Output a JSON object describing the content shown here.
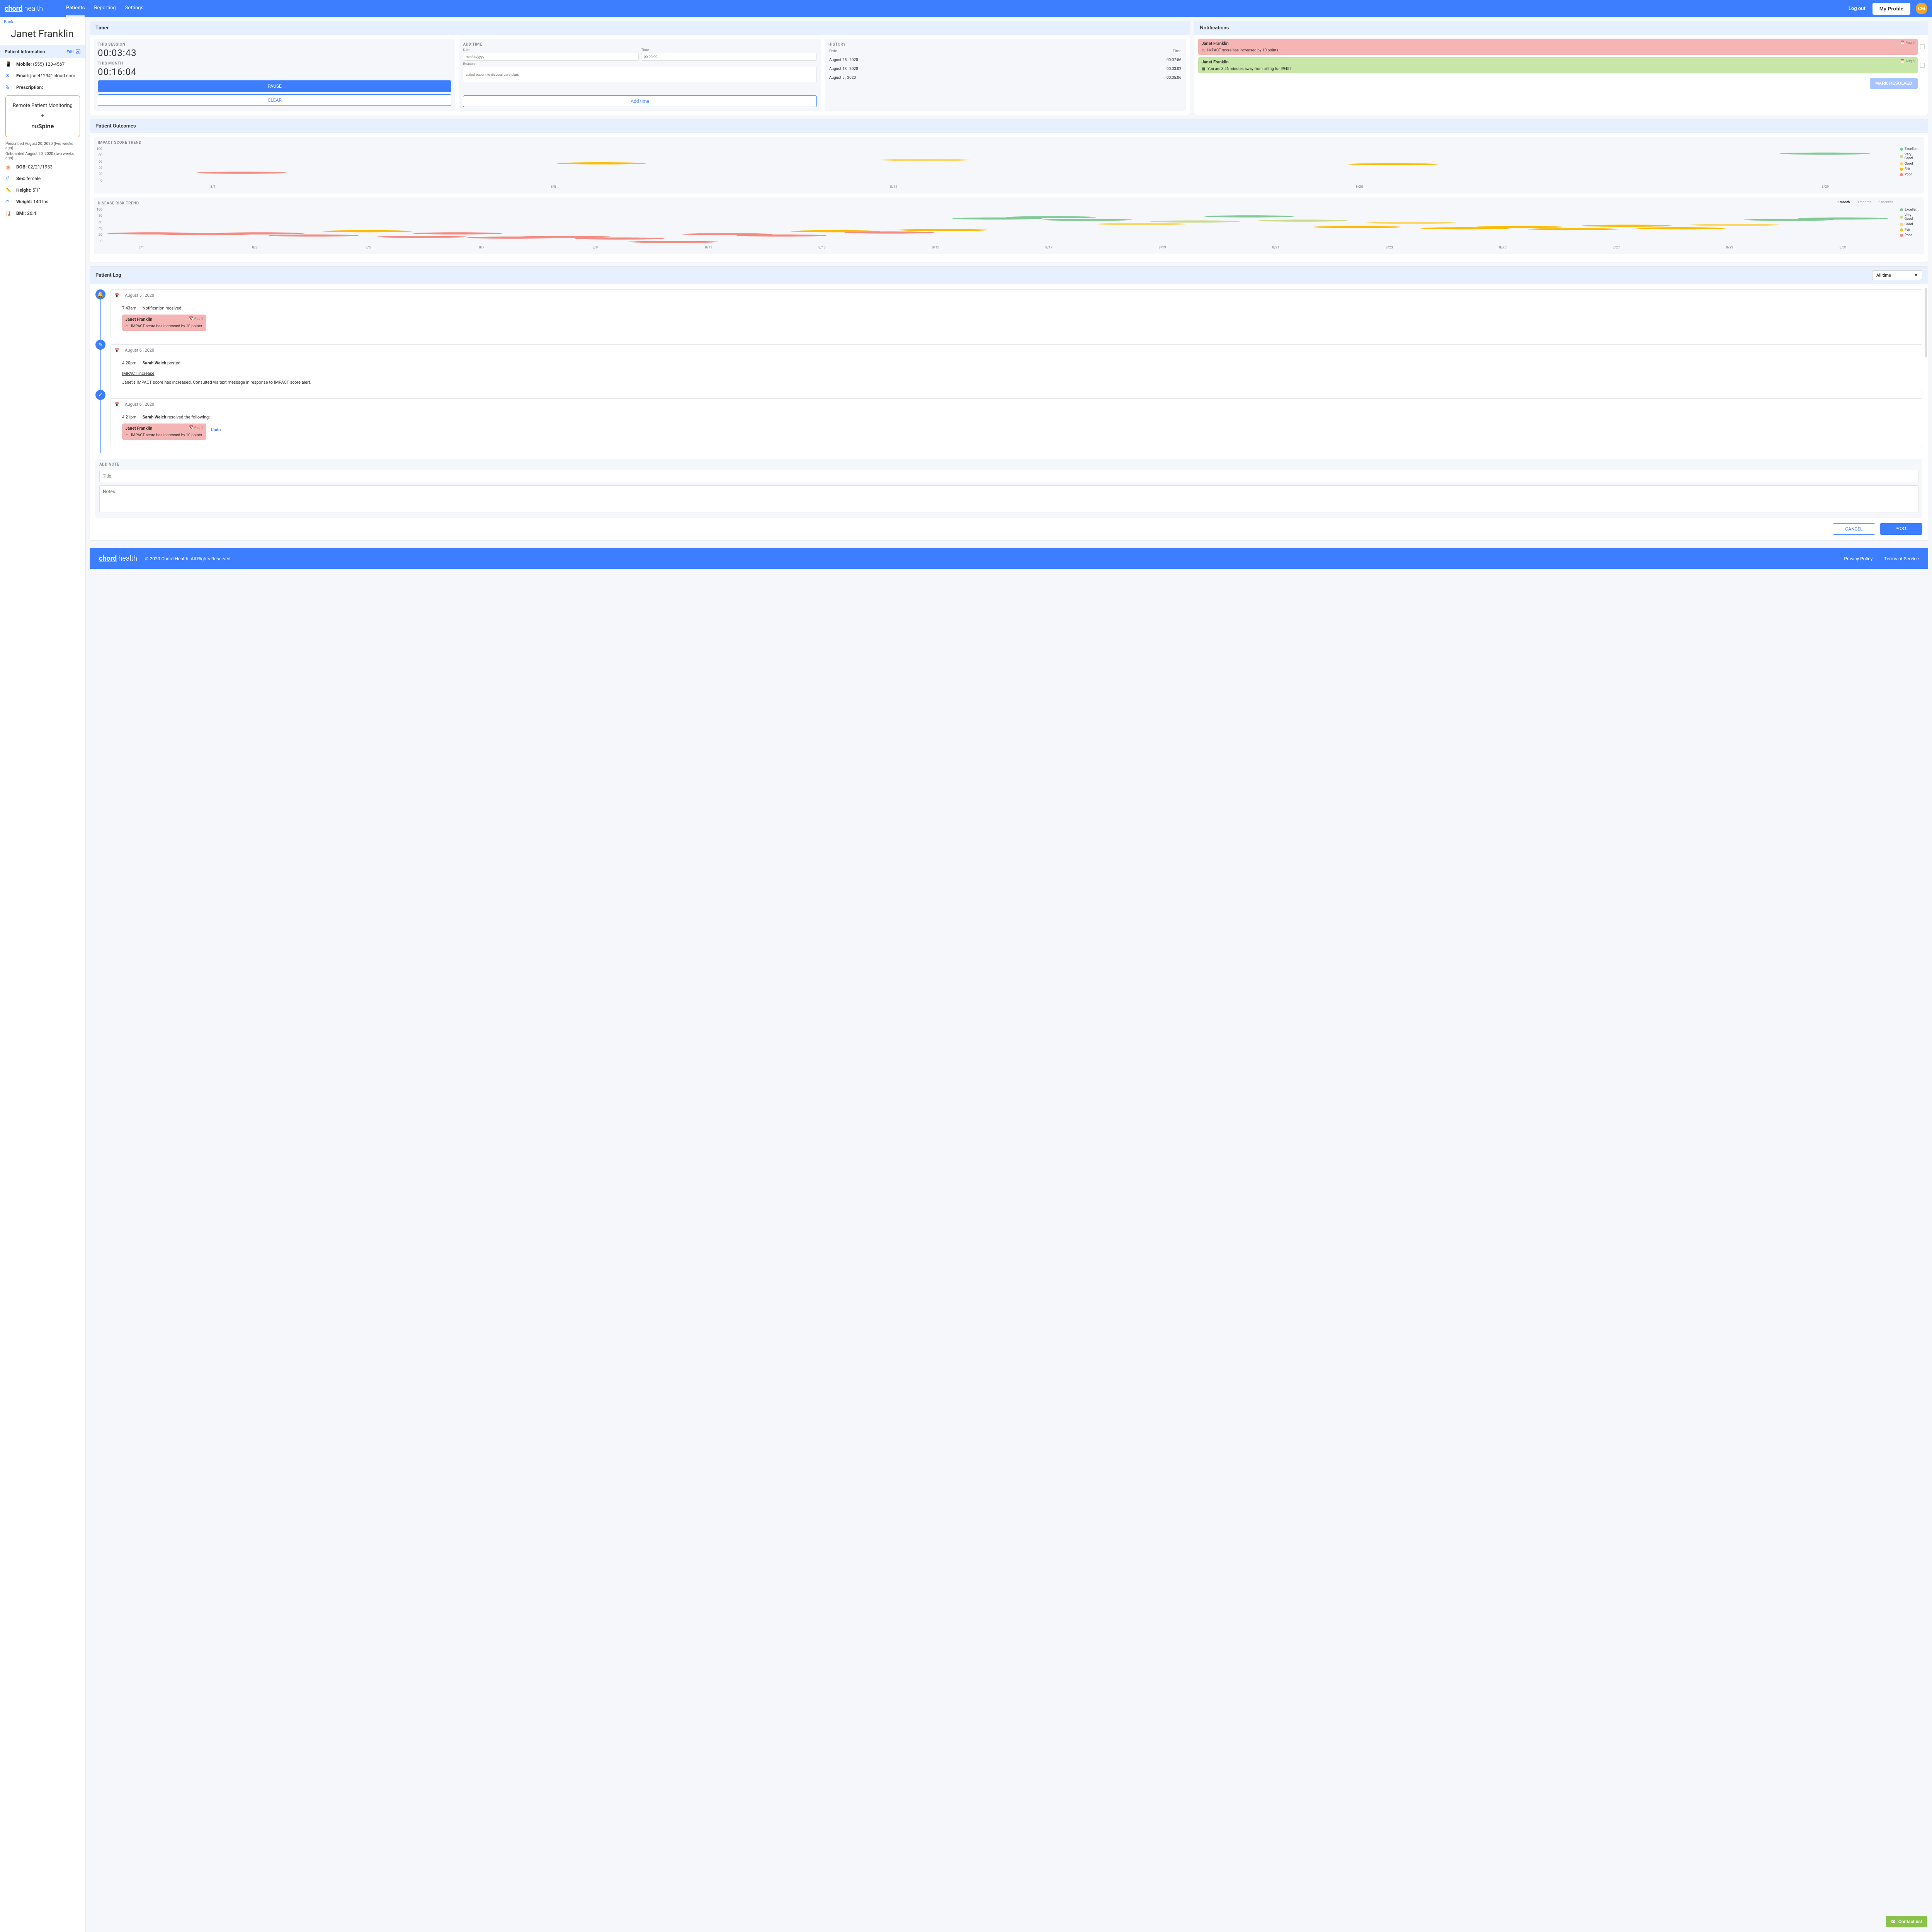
{
  "brand": {
    "part1": "chord",
    "part2": " health"
  },
  "nav": {
    "patients": "Patients",
    "reporting": "Reporting",
    "settings": "Settings"
  },
  "topbar": {
    "logout": "Log out",
    "profile": "My Profile",
    "initials": "CM"
  },
  "sidebar": {
    "back": "Back",
    "patient_name": "Janet Franklin",
    "info_header": "Patient Information",
    "edit": "Edit",
    "mobile_label": "Mobile:",
    "mobile": "(555) 123-4567",
    "email_label": "Email:",
    "email": "janet129@icloud.com",
    "rx_label": "Prescription:",
    "rx_title": "Remote Patient Monitoring",
    "rx_plus": "+",
    "rx_brand_i": "nu",
    "rx_brand_b": "Spine",
    "prescribed": "Prescribed August 20, 2020 (two weeks ago)",
    "onboarded": "Onboarded August 20, 2020 (two weeks ago)",
    "dob_label": "DOB:",
    "dob": "02/21/1953",
    "sex_label": "Sex:",
    "sex": "female",
    "height_label": "Height:",
    "height": "5'1\"",
    "weight_label": "Weight:",
    "weight": "140 lbs",
    "bmi_label": "BMI:",
    "bmi": "26.4"
  },
  "timer": {
    "header": "Timer",
    "session_label": "THIS SESSION",
    "session_value": "00:03:43",
    "month_label": "THIS MONTH",
    "month_value": "00:16:04",
    "pause": "PAUSE",
    "clear": "CLEAR",
    "add_label": "ADD TIME",
    "date_label": "Date",
    "date_ph": "mm/dd/yyyy",
    "time_label": "Time",
    "time_ph": "00:00:00",
    "reason_label": "Reason",
    "reason_ph": "called patient to discuss care plan.",
    "add_btn": "Add time",
    "history_label": "HISTORY",
    "h_date": "Date",
    "h_time": "Time",
    "history": [
      {
        "date": "August 25 , 2020",
        "time": "00:07:56"
      },
      {
        "date": "August 18 , 2020",
        "time": "00:03:02"
      },
      {
        "date": "August 5 , 2020",
        "time": "00:05:06"
      }
    ]
  },
  "notifications": {
    "header": "Notifications",
    "mark_resolved": "MARK RESOLVED",
    "items": [
      {
        "name": "Janet Franklin",
        "date": "Aug 5",
        "msg": "IMPACT score has increased by 10 points.",
        "type": "red",
        "icon": "⚠"
      },
      {
        "name": "Janet Franklin",
        "date": "Aug 5",
        "msg": "You are 3:56 minutes away from billing for 99457.",
        "type": "green",
        "icon": "▦"
      }
    ]
  },
  "outcomes": {
    "header": "Patient Outcomes",
    "impact": {
      "title": "IMPACT SCORE TREND",
      "y_ticks": [
        100,
        80,
        60,
        40,
        20,
        0
      ],
      "x_labels": [
        "8/1",
        "8/5",
        "8/12",
        "8/20",
        "8/29"
      ],
      "x_positions": [
        6,
        25,
        44,
        70,
        96
      ],
      "points": [
        {
          "x": 8,
          "y": 40,
          "color": "#f28b82"
        },
        {
          "x": 28,
          "y": 62,
          "color": "#fbbc04"
        },
        {
          "x": 46,
          "y": 70,
          "color": "#fdd663"
        },
        {
          "x": 72,
          "y": 60,
          "color": "#fbbc04"
        },
        {
          "x": 96,
          "y": 85,
          "color": "#81c995"
        }
      ]
    },
    "disease": {
      "title": "DISEASE RISK TREND",
      "tabs": {
        "m1": "1 month",
        "m3": "3 months",
        "m6": "6 months"
      },
      "y_ticks": [
        100,
        80,
        60,
        40,
        20,
        0
      ],
      "x_labels": [
        "8/1",
        "8/3",
        "8/5",
        "8/7",
        "8/9",
        "8/11",
        "8/13",
        "8/15",
        "8/17",
        "8/19",
        "8/21",
        "8/23",
        "8/25",
        "8/27",
        "8/29",
        "8/31"
      ],
      "points": [
        {
          "x": 3,
          "y": 40,
          "color": "#f28b82"
        },
        {
          "x": 6,
          "y": 38,
          "color": "#f28b82"
        },
        {
          "x": 9,
          "y": 40,
          "color": "#f28b82"
        },
        {
          "x": 12,
          "y": 35,
          "color": "#f28b82"
        },
        {
          "x": 15,
          "y": 45,
          "color": "#fbbc04"
        },
        {
          "x": 18,
          "y": 32,
          "color": "#f28b82"
        },
        {
          "x": 20,
          "y": 40,
          "color": "#f28b82"
        },
        {
          "x": 23,
          "y": 30,
          "color": "#f28b82"
        },
        {
          "x": 26,
          "y": 32,
          "color": "#f28b82"
        },
        {
          "x": 29,
          "y": 28,
          "color": "#f28b82"
        },
        {
          "x": 32,
          "y": 20,
          "color": "#f28b82"
        },
        {
          "x": 35,
          "y": 38,
          "color": "#f28b82"
        },
        {
          "x": 38,
          "y": 35,
          "color": "#f28b82"
        },
        {
          "x": 41,
          "y": 45,
          "color": "#fbbc04"
        },
        {
          "x": 44,
          "y": 42,
          "color": "#f28b82"
        },
        {
          "x": 47,
          "y": 48,
          "color": "#fbbc04"
        },
        {
          "x": 50,
          "y": 75,
          "color": "#81c995"
        },
        {
          "x": 53,
          "y": 78,
          "color": "#81c995"
        },
        {
          "x": 55,
          "y": 72,
          "color": "#81c995"
        },
        {
          "x": 58,
          "y": 62,
          "color": "#fdd663"
        },
        {
          "x": 61,
          "y": 68,
          "color": "#ccdb8c"
        },
        {
          "x": 64,
          "y": 80,
          "color": "#81c995"
        },
        {
          "x": 67,
          "y": 70,
          "color": "#ccdb8c"
        },
        {
          "x": 70,
          "y": 55,
          "color": "#fbbc04"
        },
        {
          "x": 73,
          "y": 65,
          "color": "#fdd663"
        },
        {
          "x": 76,
          "y": 52,
          "color": "#fbbc04"
        },
        {
          "x": 79,
          "y": 55,
          "color": "#fbbc04"
        },
        {
          "x": 82,
          "y": 50,
          "color": "#fbbc04"
        },
        {
          "x": 85,
          "y": 58,
          "color": "#fbbc04"
        },
        {
          "x": 88,
          "y": 52,
          "color": "#fbbc04"
        },
        {
          "x": 91,
          "y": 60,
          "color": "#fdd663"
        },
        {
          "x": 94,
          "y": 72,
          "color": "#81c995"
        },
        {
          "x": 97,
          "y": 75,
          "color": "#81c995"
        }
      ]
    },
    "legend": [
      {
        "label": "Excellent",
        "color": "#81c995"
      },
      {
        "label": "Very Good",
        "color": "#ccdb8c"
      },
      {
        "label": "Good",
        "color": "#fdd663"
      },
      {
        "label": "Fair",
        "color": "#fbbc04"
      },
      {
        "label": "Poor",
        "color": "#f28b82"
      }
    ]
  },
  "log": {
    "header": "Patient Log",
    "filter": "All time",
    "entries": [
      {
        "icon": "🔔",
        "date": "August 5 , 2020",
        "time": "7:43am",
        "text": "Notification received:",
        "notif": {
          "name": "Janet Franklin",
          "date": "Aug 5",
          "msg": "IMPACT score has increased by 10 points."
        }
      },
      {
        "icon": "✎",
        "date": "August 6 , 2020",
        "time": "4:20pm",
        "author": "Sarah Welch",
        "action": " posted:",
        "title": "IMPACT increase",
        "body": "Janet's IMPACT score has increased.  Consulted via text message in response to IMPACT score alert."
      },
      {
        "icon": "✓",
        "date": "August 6 , 2020",
        "time": "4:21pm",
        "author": "Sarah Welch",
        "action": " resolved the following:",
        "notif": {
          "name": "Janet Franklin",
          "date": "Aug 5",
          "msg": "IMPACT score has increased by 10 points."
        },
        "undo": "Undo"
      }
    ],
    "add_note_label": "ADD NOTE",
    "title_ph": "Title",
    "notes_ph": "Notes",
    "cancel": "CANCEL",
    "post": "POST"
  },
  "footer": {
    "copyright": "© 2020 Chord Health. All Rights Reserved.",
    "privacy": "Privacy Policy",
    "terms": "Terms of Service"
  },
  "contact": "Contact us!"
}
